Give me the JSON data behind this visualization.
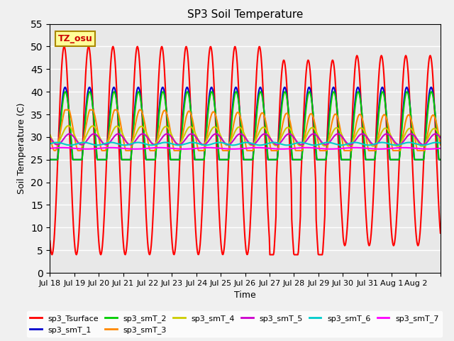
{
  "title": "SP3 Soil Temperature",
  "ylabel": "Soil Temperature (C)",
  "xlabel": "Time",
  "annotation": "TZ_osu",
  "annotation_color": "#cc0000",
  "annotation_bg": "#ffff99",
  "annotation_border": "#aa8800",
  "ylim": [
    0,
    55
  ],
  "yticks": [
    0,
    5,
    10,
    15,
    20,
    25,
    30,
    35,
    40,
    45,
    50,
    55
  ],
  "xtick_positions": [
    0,
    1,
    2,
    3,
    4,
    5,
    6,
    7,
    8,
    9,
    10,
    11,
    12,
    13,
    14,
    15,
    16
  ],
  "xtick_labels": [
    "Jul 18",
    "Jul 19",
    "Jul 20",
    "Jul 21",
    "Jul 22",
    "Jul 23",
    "Jul 24",
    "Jul 25",
    "Jul 26",
    "Jul 27",
    "Jul 28",
    "Jul 29",
    "Jul 30",
    "Jul 31",
    "Aug 1",
    "Aug 2",
    ""
  ],
  "series_names": [
    "sp3_Tsurface",
    "sp3_smT_1",
    "sp3_smT_2",
    "sp3_smT_3",
    "sp3_smT_4",
    "sp3_smT_5",
    "sp3_smT_6",
    "sp3_smT_7"
  ],
  "series_colors": [
    "#ff0000",
    "#0000cc",
    "#00cc00",
    "#ff8800",
    "#cccc00",
    "#cc00cc",
    "#00cccc",
    "#ff00ff"
  ],
  "series_lw": [
    1.5,
    1.5,
    1.5,
    1.5,
    1.5,
    1.5,
    1.5,
    1.5
  ],
  "legend_ncol": 6,
  "bg_color": "#e8e8e8"
}
